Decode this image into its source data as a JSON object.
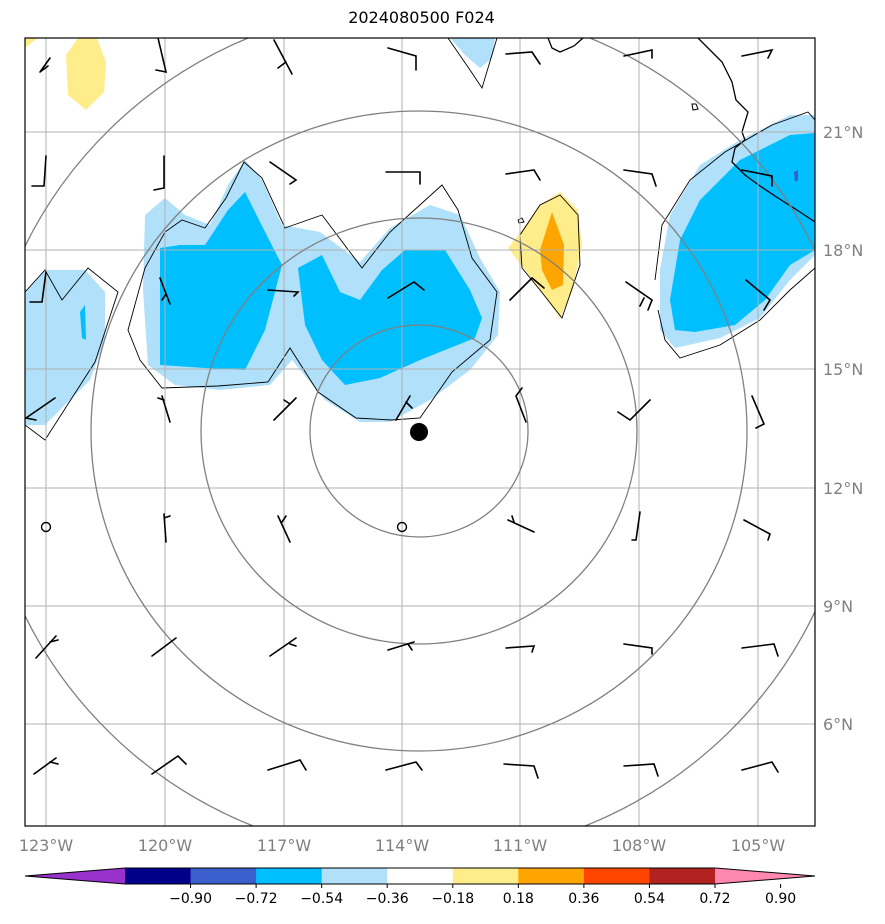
{
  "title": "2024080500 F024",
  "map": {
    "lon_ticks": [
      "123°W",
      "120°W",
      "117°W",
      "114°W",
      "111°W",
      "108°W",
      "105°W"
    ],
    "lat_ticks": [
      "21°N",
      "18°N",
      "15°N",
      "12°N",
      "9°N",
      "6°N"
    ],
    "storm_center": {
      "lon": -113.6,
      "lat": 13.4
    },
    "range_rings_count": 4,
    "coastline_color": "#000000",
    "gridline_color": "#b0b0b0",
    "ring_color": "#808080"
  },
  "colorbar": {
    "colors": [
      "#9932cc",
      "#00008b",
      "#3a5fcd",
      "#00bfff",
      "#b0e0fa",
      "#ffffff",
      "#ffec8b",
      "#ffa500",
      "#ff4500",
      "#b22222",
      "#ff88b0"
    ],
    "labels": [
      "−0.90",
      "−0.72",
      "−0.54",
      "−0.36",
      "−0.18",
      "0.18",
      "0.36",
      "0.54",
      "0.72",
      "0.90"
    ]
  },
  "shading_colors": {
    "light_blue": "#b0e0fa",
    "blue": "#00bfff",
    "yellow": "#ffec8b",
    "orange": "#ffa500"
  }
}
